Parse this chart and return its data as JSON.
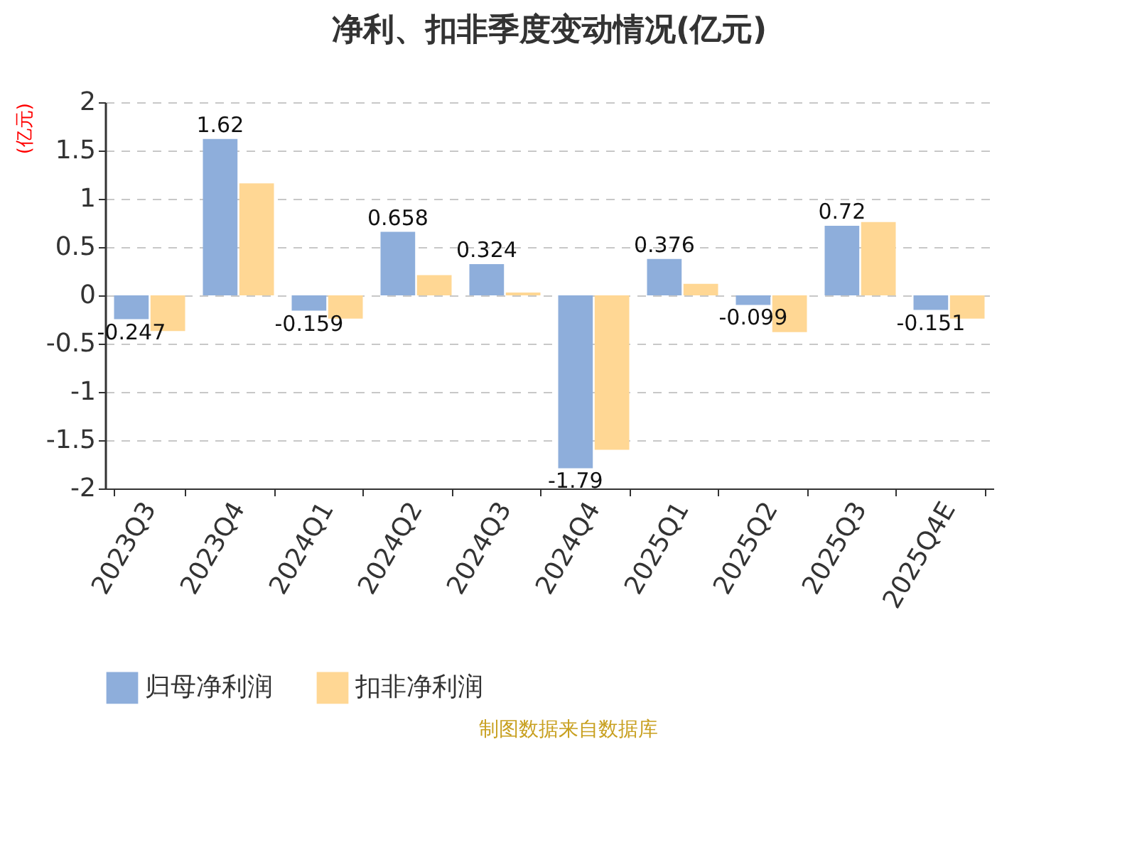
{
  "chart_data": {
    "type": "bar",
    "title": "净利、扣非季度变动情况(亿元)",
    "ylabel": "(亿元)",
    "categories": [
      "2023Q3",
      "2023Q4",
      "2024Q1",
      "2024Q2",
      "2024Q3",
      "2024Q4",
      "2025Q1",
      "2025Q2",
      "2025Q3",
      "2025Q4E"
    ],
    "series": [
      {
        "name": "归母净利润",
        "color": "#8eaedb",
        "values": [
          -0.247,
          1.62,
          -0.159,
          0.658,
          0.324,
          -1.79,
          0.376,
          -0.099,
          0.72,
          -0.151
        ],
        "value_labels": [
          "-0.247",
          "1.62",
          "-0.159",
          "0.658",
          "0.324",
          "-1.79",
          "0.376",
          "-0.099",
          "0.72",
          "-0.151"
        ]
      },
      {
        "name": "扣非净利润",
        "color": "#ffd794",
        "values": [
          -0.37,
          1.16,
          -0.24,
          0.21,
          0.03,
          -1.6,
          0.12,
          -0.38,
          0.76,
          -0.24
        ]
      }
    ],
    "ylim": [
      -2,
      2
    ],
    "yticks": [
      -2,
      -1.5,
      -1,
      -0.5,
      0,
      0.5,
      1,
      1.5,
      2
    ],
    "grid": "y",
    "legend": "bottom",
    "annotations": [
      "制图数据来自数据库"
    ]
  }
}
